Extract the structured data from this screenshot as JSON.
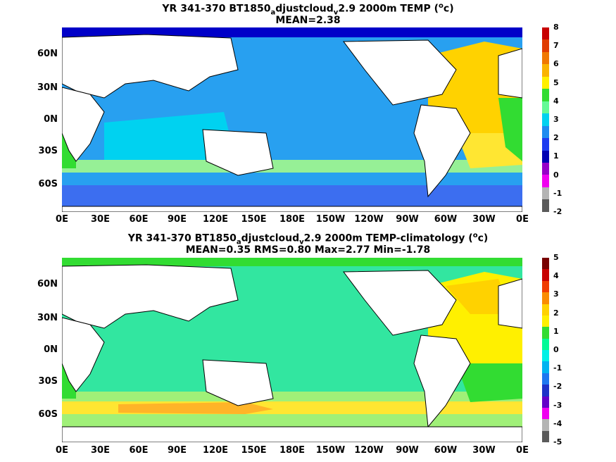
{
  "panels": [
    {
      "title_parts": [
        "YR 341-370 BT1850",
        "a",
        "djustcloud",
        "v",
        "2.9 2000m TEMP (",
        "o",
        "c)"
      ],
      "subtitle": "MEAN=2.38",
      "colorbar": {
        "ticks": [
          "8",
          "7",
          "6",
          "5",
          "4",
          "3",
          "2",
          "1",
          "0",
          "-1",
          "-2"
        ],
        "colors": [
          "#c80000",
          "#e03c00",
          "#f07800",
          "#fab400",
          "#fff000",
          "#32dc32",
          "#64fa96",
          "#00d2f0",
          "#1e8cf0",
          "#1e3cf0",
          "#0000b4",
          "#9600c8",
          "#f000f0",
          "#b4b4b4",
          "#5a5a5a"
        ]
      },
      "regions": {
        "land": "#ffffff",
        "deep_ocean": "#28a0f0",
        "indian": "#00d2f0",
        "southern_green": "#96f096",
        "antarctic_blue": "#3c6ef0",
        "atlantic_north": "#ffd200",
        "atlantic_south": "#ffe632",
        "atlantic_green": "#32dc32",
        "arctic": "#0000c8"
      }
    },
    {
      "title_parts": [
        "YR 341-370 BT1850",
        "a",
        "djustcloud",
        "v",
        "2.9 2000m TEMP-climatology (",
        "o",
        "c)"
      ],
      "subtitle": "MEAN=0.35   RMS=0.80   Max=2.77   Min=-1.78",
      "colorbar": {
        "ticks": [
          "5",
          "4",
          "3",
          "2",
          "1",
          "0",
          "-1",
          "-2",
          "-3",
          "-4",
          "-5"
        ],
        "colors": [
          "#780000",
          "#c80000",
          "#f03c00",
          "#fa8c00",
          "#ffd200",
          "#fff000",
          "#32dc32",
          "#00fa96",
          "#00f0e6",
          "#00b4f0",
          "#1e78f0",
          "#1e32c8",
          "#6400c8",
          "#f000f0",
          "#b4b4b4",
          "#5a5a5a"
        ]
      },
      "regions": {
        "land": "#ffffff",
        "pacific": "#32e6a0",
        "indian": "#32e6a0",
        "southern": "#a0f078",
        "southern_yellow": "#ffe632",
        "southern_orange": "#ffb428",
        "atlantic": "#fff000",
        "atlantic_orange": "#ffd200",
        "green": "#32dc32",
        "arctic": "#32dc32"
      }
    }
  ],
  "lat_labels": [
    "60N",
    "30N",
    "0N",
    "30S",
    "60S"
  ],
  "lon_labels": [
    "0E",
    "30E",
    "60E",
    "90E",
    "120E",
    "150E",
    "180E",
    "150W",
    "120W",
    "90W",
    "60W",
    "30W",
    "0E"
  ]
}
